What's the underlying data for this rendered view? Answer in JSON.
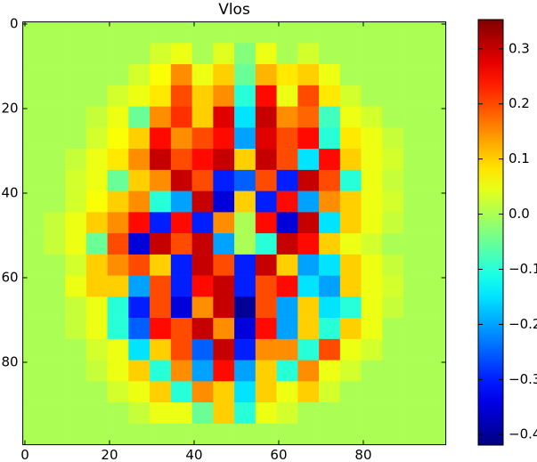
{
  "chart_data": {
    "type": "heatmap",
    "title": "Vlos",
    "colormap": "jet",
    "xlim": [
      -0.5,
      99.5
    ],
    "ylim": [
      99.5,
      -0.5
    ],
    "xticks": [
      0,
      20,
      40,
      60,
      80
    ],
    "yticks": [
      0,
      20,
      40,
      60,
      80
    ],
    "clim": [
      -0.419,
      0.353
    ],
    "cticks": [
      0.3,
      0.2,
      0.1,
      {
        "value": 0,
        "label": "0.0"
      },
      {
        "value": -0.1,
        "label": "−0.1"
      },
      {
        "value": -0.2,
        "label": "−0.2"
      },
      {
        "value": -0.3,
        "label": "−0.3"
      },
      {
        "value": -0.4,
        "label": "−0.4"
      }
    ],
    "z": [
      [
        0,
        0,
        0,
        0,
        0,
        0,
        0,
        0,
        0,
        0,
        0,
        0,
        0,
        0,
        0,
        0,
        0,
        0,
        0,
        0
      ],
      [
        0,
        0,
        0,
        0,
        0,
        0,
        0.03,
        0.05,
        0,
        0.04,
        -0.03,
        0.05,
        0,
        0.03,
        0,
        0,
        0,
        0,
        0,
        0
      ],
      [
        0,
        0,
        0,
        0,
        0,
        0.03,
        0.06,
        0.15,
        0.05,
        0.1,
        -0.05,
        0.12,
        0.08,
        0.1,
        0.05,
        0,
        0,
        0,
        0,
        0
      ],
      [
        0,
        0,
        0,
        0,
        0.03,
        0.05,
        0.08,
        0.2,
        0.1,
        0.15,
        -0.1,
        0.25,
        0.05,
        0.2,
        0.08,
        0.03,
        0,
        0,
        0,
        0
      ],
      [
        0,
        0,
        0,
        0.02,
        0.05,
        -0.05,
        0.15,
        0.22,
        0.1,
        0.28,
        -0.15,
        0.3,
        0.15,
        0.18,
        -0.08,
        0.05,
        0.03,
        0,
        0,
        0
      ],
      [
        0,
        0,
        0,
        0.03,
        0.06,
        0.1,
        0.25,
        0.15,
        0.2,
        0.25,
        -0.2,
        0.28,
        0.2,
        0.25,
        -0.1,
        0.08,
        0.05,
        0.02,
        0,
        0
      ],
      [
        0,
        0,
        0.02,
        0.05,
        0.08,
        0.15,
        0.3,
        0.2,
        0.25,
        0.3,
        0.1,
        0.3,
        0.2,
        -0.15,
        0.25,
        0.1,
        0.05,
        0.03,
        0,
        0
      ],
      [
        0,
        0,
        0.03,
        0.05,
        -0.05,
        0.1,
        0.15,
        0.3,
        0.2,
        -0.3,
        -0.25,
        0.2,
        -0.3,
        0.3,
        0.2,
        -0.1,
        0.05,
        0.02,
        0,
        0
      ],
      [
        0,
        0,
        0.03,
        0.06,
        0.1,
        0.15,
        -0.1,
        -0.2,
        0.3,
        -0.35,
        0.1,
        -0.3,
        0.25,
        -0.2,
        0.15,
        0.1,
        0.05,
        0.03,
        0,
        0
      ],
      [
        0,
        0.02,
        0.05,
        0.1,
        0.15,
        0.25,
        -0.3,
        0.25,
        -0.3,
        0.15,
        0,
        0.25,
        -0.35,
        0.3,
        -0.15,
        0.1,
        0.05,
        0.02,
        0,
        0
      ],
      [
        0,
        0.02,
        0.05,
        -0.05,
        0.2,
        -0.35,
        0.3,
        0.2,
        0.3,
        -0.2,
        0,
        -0.1,
        0.3,
        0.25,
        0.1,
        0.05,
        0.03,
        0,
        0,
        0
      ],
      [
        0,
        0,
        0.03,
        0.1,
        0.15,
        0.2,
        0.1,
        -0.3,
        0.3,
        0.2,
        -0.3,
        0.3,
        0.1,
        -0.2,
        -0.15,
        0.1,
        0.05,
        0.02,
        0,
        0
      ],
      [
        0,
        0,
        0.05,
        0.1,
        0.1,
        -0.2,
        0.2,
        -0.3,
        0.25,
        0.3,
        -0.3,
        0.2,
        0.25,
        -0.15,
        -0.2,
        0.1,
        0.05,
        0.03,
        0,
        0
      ],
      [
        0,
        0,
        0.02,
        0.05,
        -0.1,
        -0.3,
        0.2,
        -0.35,
        0.15,
        0.3,
        -0.4,
        0.2,
        -0.2,
        0.1,
        -0.15,
        -0.1,
        0.05,
        0.02,
        0,
        0
      ],
      [
        0,
        0,
        0.02,
        0.05,
        -0.1,
        -0.25,
        0.25,
        0.2,
        0.3,
        0.15,
        -0.35,
        0.25,
        -0.2,
        0.1,
        -0.1,
        0.1,
        0.05,
        0,
        0,
        0
      ],
      [
        0,
        0,
        0,
        0.03,
        0.05,
        -0.15,
        0.1,
        0.2,
        -0.25,
        0.3,
        -0.3,
        0.15,
        0.15,
        -0.1,
        0.2,
        0.05,
        0.03,
        0,
        0,
        0
      ],
      [
        0,
        0,
        0,
        0.02,
        0.05,
        0.1,
        -0.1,
        0.15,
        -0.2,
        0.25,
        -0.2,
        0.1,
        -0.1,
        0.15,
        0.05,
        0.03,
        0,
        0,
        0,
        0
      ],
      [
        0,
        0,
        0,
        0,
        0.03,
        0.05,
        0.1,
        -0.1,
        0.15,
        0.1,
        -0.15,
        0.1,
        0.05,
        0.1,
        0.03,
        0,
        0,
        0,
        0,
        0
      ],
      [
        0,
        0,
        0,
        0,
        0,
        0.02,
        0.05,
        0.05,
        -0.05,
        0.1,
        -0.1,
        0.05,
        0.03,
        0,
        0,
        0,
        0,
        0,
        0,
        0
      ],
      [
        0,
        0,
        0,
        0,
        0,
        0,
        0,
        0,
        0,
        0,
        0,
        0,
        0,
        0,
        0,
        0,
        0,
        0,
        0,
        0
      ]
    ]
  }
}
